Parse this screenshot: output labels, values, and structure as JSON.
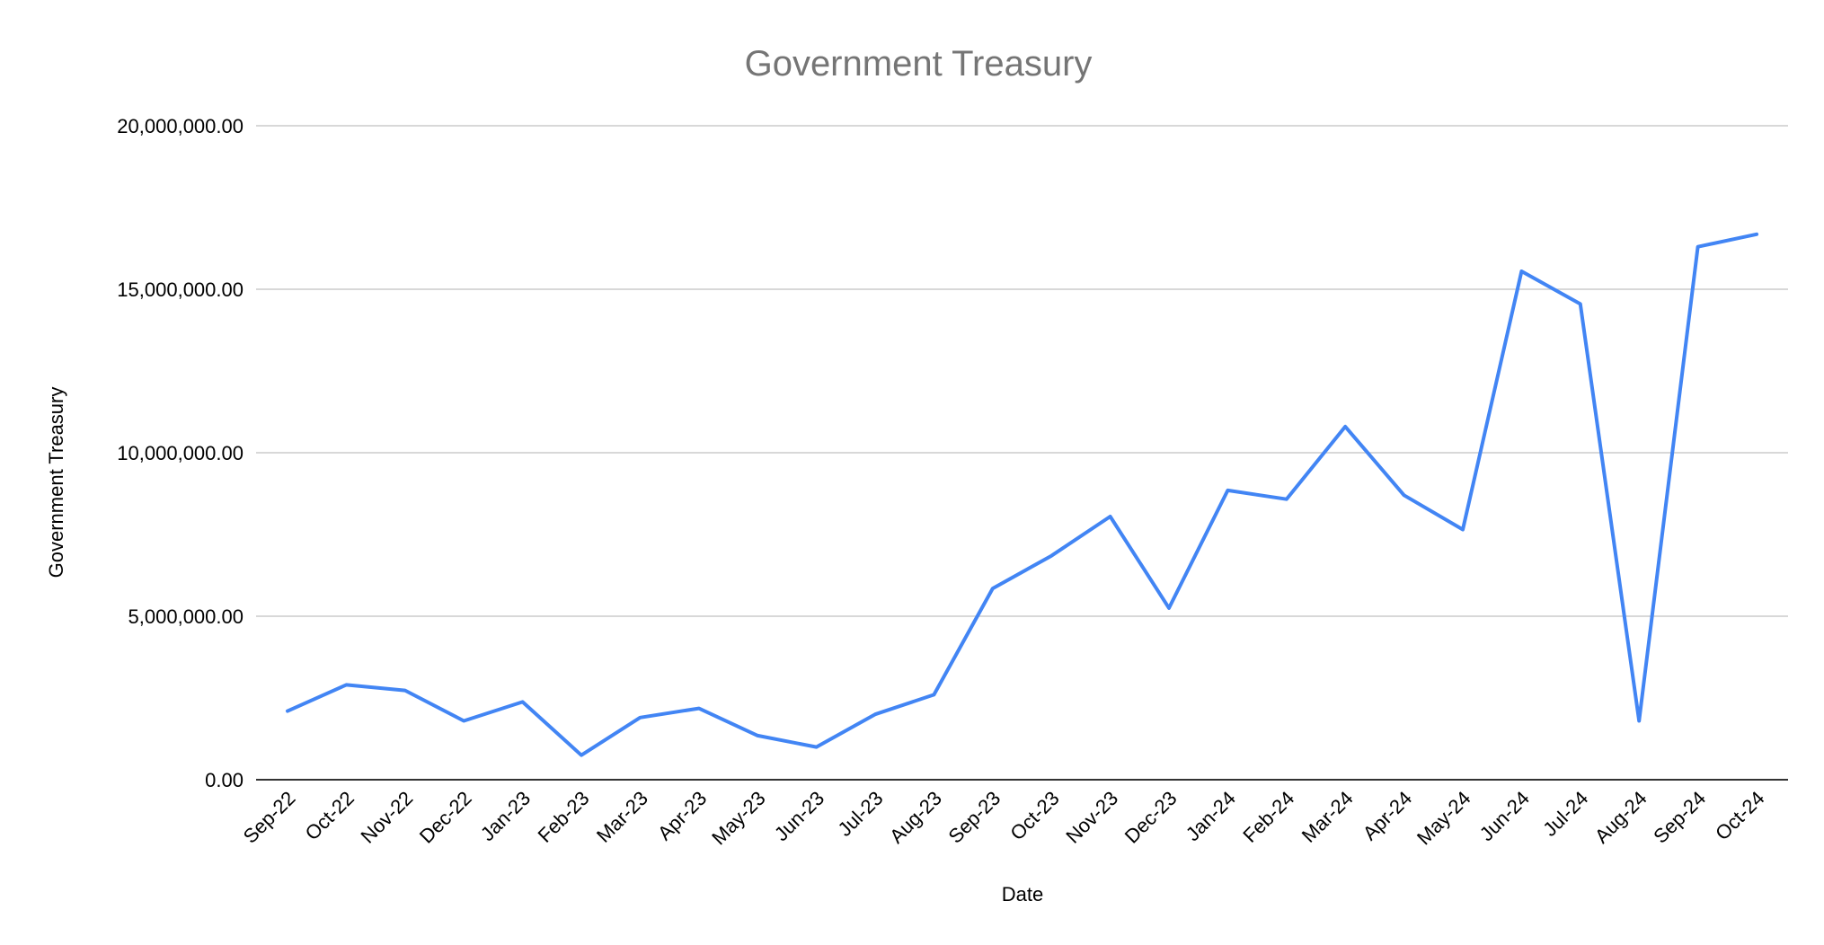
{
  "chart_data": {
    "type": "line",
    "title": "Government Treasury",
    "xlabel": "Date",
    "ylabel": "Government Treasury",
    "ylim": [
      0,
      20000000
    ],
    "yticks": [
      "0.00",
      "5,000,000.00",
      "10,000,000.00",
      "15,000,000.00",
      "20,000,000.00"
    ],
    "ytick_values": [
      0,
      5000000,
      10000000,
      15000000,
      20000000
    ],
    "categories": [
      "Sep-22",
      "Oct-22",
      "Nov-22",
      "Dec-22",
      "Jan-23",
      "Feb-23",
      "Mar-23",
      "Apr-23",
      "May-23",
      "Jun-23",
      "Jul-23",
      "Aug-23",
      "Sep-23",
      "Oct-23",
      "Nov-23",
      "Dec-23",
      "Jan-24",
      "Feb-24",
      "Mar-24",
      "Apr-24",
      "May-24",
      "Jun-24",
      "Jul-24",
      "Aug-24",
      "Sep-24",
      "Oct-24"
    ],
    "series": [
      {
        "values": [
          2100000,
          2900000,
          2730000,
          1800000,
          2380000,
          750000,
          1900000,
          2180000,
          1350000,
          1000000,
          2000000,
          2600000,
          5850000,
          6850000,
          8050000,
          5250000,
          8850000,
          8580000,
          10800000,
          8700000,
          7650000,
          15550000,
          14550000,
          1800000,
          16300000,
          16680000
        ],
        "color": "#4285f4"
      }
    ],
    "grid": true,
    "legend": "none"
  }
}
